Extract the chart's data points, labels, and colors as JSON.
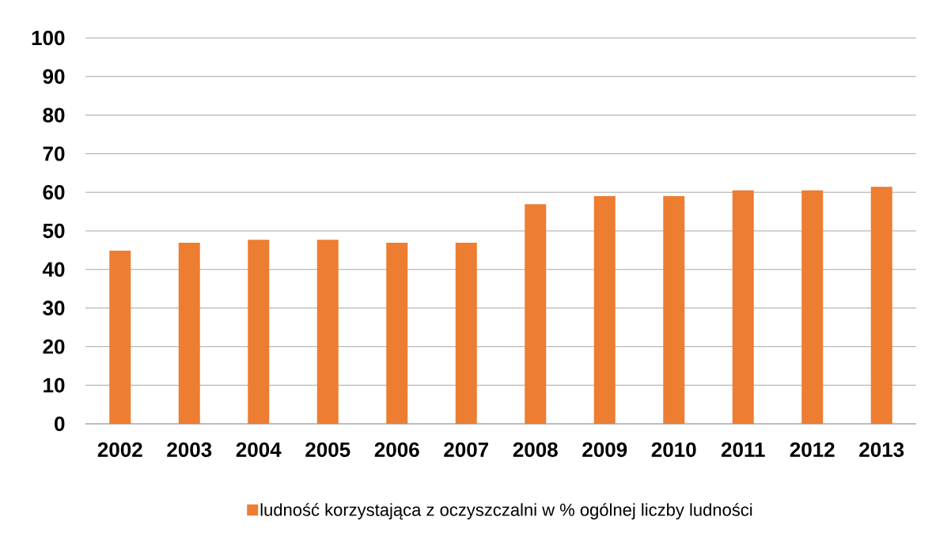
{
  "chart_data": {
    "type": "bar",
    "categories": [
      "2002",
      "2003",
      "2004",
      "2005",
      "2006",
      "2007",
      "2008",
      "2009",
      "2010",
      "2011",
      "2012",
      "2013"
    ],
    "series": [
      {
        "name": "ludność korzystająca z oczyszczalni w % ogólnej liczby ludności",
        "color": "#ed7d31",
        "values": [
          44.9,
          46.9,
          47.7,
          47.7,
          46.9,
          46.9,
          56.9,
          59.0,
          59.0,
          60.5,
          60.5,
          61.4
        ]
      }
    ],
    "ylim": [
      0,
      100
    ],
    "yticks": [
      0,
      10,
      20,
      30,
      40,
      50,
      60,
      70,
      80,
      90,
      100
    ],
    "grid": "y",
    "legend": "bottom"
  }
}
